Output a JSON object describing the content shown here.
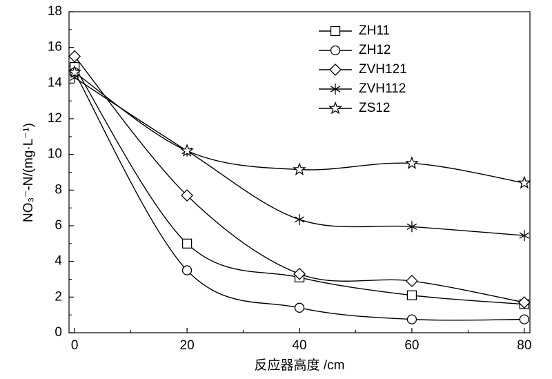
{
  "chart_data": {
    "type": "line",
    "x_label": "反应器高度 /cm",
    "y_label": "NO₃⁻-N/(mg·L⁻¹)",
    "x": [
      0,
      20,
      40,
      60,
      80
    ],
    "xlim": [
      -1,
      81
    ],
    "xticks": [
      0,
      20,
      40,
      60,
      80
    ],
    "ylim": [
      0,
      18
    ],
    "yticks": [
      0,
      2,
      4,
      6,
      8,
      10,
      12,
      14,
      16,
      18
    ],
    "legend": "upper right",
    "series": [
      {
        "name": "ZH11",
        "color": "#000000",
        "marker": "square",
        "values": [
          14.9,
          5.0,
          3.1,
          2.1,
          1.6
        ]
      },
      {
        "name": "ZH12",
        "color": "#000000",
        "marker": "circle",
        "values": [
          14.6,
          3.5,
          1.4,
          0.75,
          0.75
        ]
      },
      {
        "name": "ZVH121",
        "color": "#000000",
        "marker": "diamond",
        "values": [
          15.5,
          7.7,
          3.3,
          2.9,
          1.7
        ]
      },
      {
        "name": "ZVH112",
        "color": "#000000",
        "marker": "asterisk",
        "values": [
          14.3,
          10.2,
          6.35,
          5.95,
          5.45
        ]
      },
      {
        "name": "ZS12",
        "color": "#000000",
        "marker": "star",
        "values": [
          14.6,
          10.2,
          9.15,
          9.5,
          8.4
        ]
      }
    ]
  }
}
